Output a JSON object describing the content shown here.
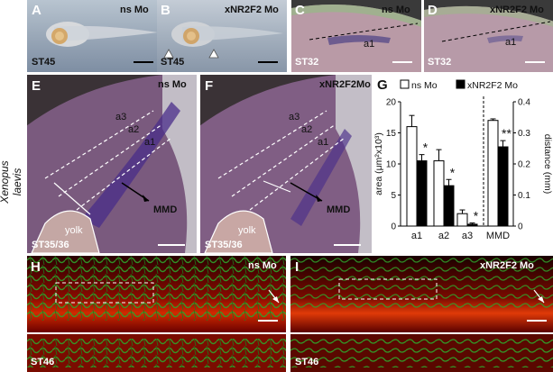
{
  "species": "Xenopus laevis",
  "panels": {
    "A": {
      "letter": "A",
      "condition": "ns Mo",
      "stage": "ST45"
    },
    "B": {
      "letter": "B",
      "condition": "xNR2F2 Mo",
      "stage": "ST45"
    },
    "C": {
      "letter": "C",
      "condition": "ns Mo",
      "stage": "ST32",
      "region": "a1"
    },
    "D": {
      "letter": "D",
      "condition": "xNR2F2 Mo",
      "stage": "ST32",
      "region": "a1"
    },
    "E": {
      "letter": "E",
      "condition": "ns Mo",
      "stage": "ST35/36",
      "regions": [
        "a3",
        "a2",
        "a1"
      ],
      "mmd": "MMD",
      "yolk": "yolk"
    },
    "F": {
      "letter": "F",
      "condition": "xNR2F2Mo",
      "stage": "ST35/36",
      "regions": [
        "a3",
        "a2",
        "a1"
      ],
      "mmd": "MMD",
      "yolk": "yolk"
    },
    "H": {
      "letter": "H",
      "condition": "ns Mo",
      "stage": "ST46"
    },
    "I": {
      "letter": "I",
      "condition": "xNR2F2 Mo",
      "stage": "ST46"
    }
  },
  "chart_data": {
    "type": "bar",
    "letter": "G",
    "legend": [
      {
        "name": "ns Mo",
        "color": "#ffffff"
      },
      {
        "name": "xNR2F2 Mo",
        "color": "#000000"
      }
    ],
    "left_axis": {
      "label": "area (μm²x10³)",
      "ylim": [
        0,
        20
      ],
      "ticks": [
        "0",
        "5",
        "10",
        "15",
        "20"
      ]
    },
    "right_axis": {
      "label": "distance (mm)",
      "ylim": [
        0,
        0.4
      ],
      "ticks": [
        "0",
        "0.1",
        "0.2",
        "0.3",
        "0.4"
      ]
    },
    "categories": [
      "a1",
      "a2",
      "a3",
      "MMD"
    ],
    "series": [
      {
        "name": "ns Mo",
        "values": [
          16,
          10.5,
          2,
          0.34
        ],
        "errors": [
          1.8,
          1.8,
          0.6,
          0.005
        ]
      },
      {
        "name": "xNR2F2 Mo",
        "values": [
          10.5,
          6.5,
          0.3,
          0.255
        ],
        "errors": [
          1.0,
          1.0,
          0.2,
          0.02
        ]
      }
    ],
    "significance": [
      "*",
      "*",
      "*",
      "**"
    ]
  }
}
